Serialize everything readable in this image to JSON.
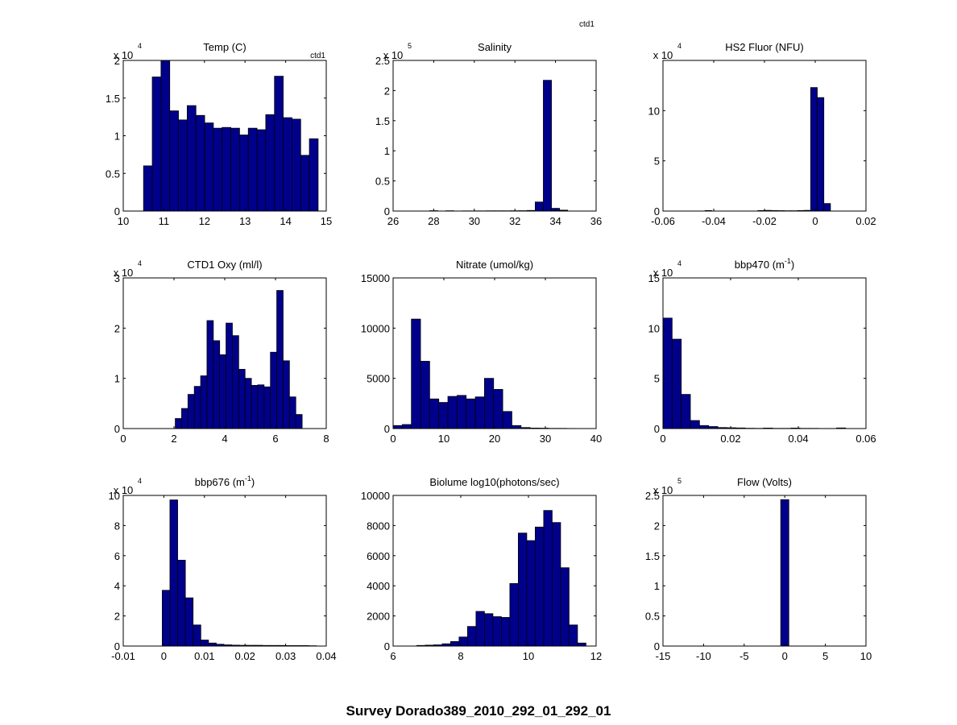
{
  "figure": {
    "suptitle": "Survey Dorado389_2010_292_01_292_01",
    "corner_label": "ctd1",
    "bar_color": "#00008B"
  },
  "chart_data": [
    {
      "type": "bar",
      "title": "Temp (C)",
      "annotation": "ctd1",
      "exponent": "4",
      "xlim": [
        10,
        15
      ],
      "ylim": [
        0,
        2
      ],
      "xticks": [
        10,
        11,
        12,
        13,
        14,
        15
      ],
      "xtick_labels": [
        "10",
        "11",
        "12",
        "13",
        "14",
        "15"
      ],
      "yticks": [
        0,
        0.5,
        1,
        1.5,
        2
      ],
      "ytick_labels": [
        "0",
        "0.5",
        "1",
        "1.5",
        "2"
      ],
      "bin_edges": [
        10.5,
        10.715,
        10.93,
        11.145,
        11.36,
        11.575,
        11.79,
        12.005,
        12.22,
        12.435,
        12.65,
        12.865,
        13.08,
        13.295,
        13.51,
        13.725,
        13.94,
        14.155,
        14.37,
        14.585,
        14.8
      ],
      "values": [
        0.6,
        1.78,
        2.0,
        1.33,
        1.21,
        1.4,
        1.27,
        1.17,
        1.1,
        1.11,
        1.1,
        1.01,
        1.1,
        1.08,
        1.28,
        1.79,
        1.24,
        1.22,
        0.74,
        0.96
      ]
    },
    {
      "type": "bar",
      "title": "Salinity",
      "exponent": "5",
      "xlim": [
        26,
        36
      ],
      "ylim": [
        0,
        2.5
      ],
      "xticks": [
        26,
        28,
        30,
        32,
        34,
        36
      ],
      "xtick_labels": [
        "26",
        "28",
        "30",
        "32",
        "34",
        "36"
      ],
      "yticks": [
        0,
        0.5,
        1,
        1.5,
        2,
        2.5
      ],
      "ytick_labels": [
        "0",
        "0.5",
        "1",
        "1.5",
        "2",
        "2.5"
      ],
      "bin_edges": [
        27.0,
        27.4,
        27.8,
        28.2,
        28.6,
        29.0,
        29.4,
        29.8,
        30.2,
        30.6,
        31.0,
        31.4,
        31.8,
        32.2,
        32.6,
        33.0,
        33.4,
        33.8,
        34.2,
        34.6,
        35.0
      ],
      "values": [
        0,
        0,
        0.006,
        0,
        0.005,
        0,
        0.003,
        0.003,
        0.003,
        0.004,
        0.004,
        0.004,
        0.005,
        0.006,
        0.01,
        0.15,
        2.17,
        0.045,
        0.015,
        0
      ]
    },
    {
      "type": "bar",
      "title": "HS2 Fluor (NFU)",
      "exponent": "4",
      "xlim": [
        -0.06,
        0.02
      ],
      "ylim": [
        0,
        15
      ],
      "xticks": [
        -0.06,
        -0.04,
        -0.02,
        0,
        0.02
      ],
      "xtick_labels": [
        "-0.06",
        "-0.04",
        "-0.02",
        "0",
        "0.02"
      ],
      "yticks": [
        0,
        5,
        10
      ],
      "ytick_labels": [
        "0",
        "5",
        "10"
      ],
      "bin_edges": [
        -0.046,
        -0.0434,
        -0.0408,
        -0.0382,
        -0.0356,
        -0.033,
        -0.0304,
        -0.0278,
        -0.0252,
        -0.0226,
        -0.02,
        -0.0174,
        -0.0148,
        -0.0122,
        -0.0096,
        -0.007,
        -0.0044,
        -0.0018,
        0.0008,
        0.0034,
        0.006
      ],
      "values": [
        0,
        0.05,
        0,
        0,
        0,
        0,
        0,
        0,
        0,
        0.05,
        0.07,
        0.05,
        0.04,
        0.03,
        0.03,
        0.05,
        0.07,
        12.3,
        11.3,
        0.75
      ]
    },
    {
      "type": "bar",
      "title": "CTD1 Oxy (ml/l)",
      "exponent": "4",
      "xlim": [
        0,
        8
      ],
      "ylim": [
        0,
        3
      ],
      "xticks": [
        0,
        2,
        4,
        6,
        8
      ],
      "xtick_labels": [
        "0",
        "2",
        "4",
        "6",
        "8"
      ],
      "yticks": [
        0,
        1,
        2,
        3
      ],
      "ytick_labels": [
        "0",
        "1",
        "2",
        "3"
      ],
      "bin_edges": [
        1.05,
        1.3,
        1.55,
        1.8,
        2.05,
        2.3,
        2.55,
        2.8,
        3.05,
        3.3,
        3.55,
        3.8,
        4.05,
        4.3,
        4.55,
        4.8,
        5.05,
        5.3,
        5.55,
        5.8,
        6.05,
        6.3,
        6.55,
        6.8,
        7.05
      ],
      "values": [
        0,
        0,
        0,
        0,
        0.2,
        0.4,
        0.68,
        0.84,
        1.05,
        2.15,
        1.75,
        1.47,
        2.1,
        1.85,
        1.18,
        1.0,
        0.86,
        0.87,
        0.83,
        1.52,
        2.75,
        1.35,
        0.63,
        0.28
      ]
    },
    {
      "type": "bar",
      "title": "Nitrate (umol/kg)",
      "xlim": [
        0,
        40
      ],
      "ylim": [
        0,
        15000
      ],
      "xticks": [
        0,
        10,
        20,
        30,
        40
      ],
      "xtick_labels": [
        "0",
        "10",
        "20",
        "30",
        "40"
      ],
      "yticks": [
        0,
        5000,
        10000,
        15000
      ],
      "ytick_labels": [
        "0",
        "5000",
        "10000",
        "15000"
      ],
      "bin_edges": [
        0,
        1.8,
        3.6,
        5.4,
        7.2,
        9.0,
        10.8,
        12.6,
        14.4,
        16.2,
        18.0,
        19.8,
        21.6,
        23.4,
        25.2,
        27.0,
        28.8,
        30.6,
        32.4,
        34.2,
        36.0
      ],
      "values": [
        300,
        400,
        10900,
        6700,
        2950,
        2600,
        3200,
        3300,
        2950,
        3150,
        5000,
        3900,
        1700,
        300,
        100,
        50,
        40,
        20,
        20,
        10
      ]
    },
    {
      "type": "bar",
      "title": "bbp470 (m",
      "title_sup": "-1",
      "title_end": ")",
      "exponent": "4",
      "xlim": [
        0,
        0.06
      ],
      "ylim": [
        0,
        15
      ],
      "xticks": [
        0,
        0.02,
        0.04,
        0.06
      ],
      "xtick_labels": [
        "0",
        "0.02",
        "0.04",
        "0.06"
      ],
      "yticks": [
        0,
        5,
        10,
        15
      ],
      "ytick_labels": [
        "0",
        "5",
        "10",
        "15"
      ],
      "bin_edges": [
        0,
        0.0027,
        0.0054,
        0.0081,
        0.0108,
        0.0135,
        0.0162,
        0.0189,
        0.0216,
        0.0243,
        0.027,
        0.0297,
        0.0324,
        0.0351,
        0.0378,
        0.0405,
        0.0432,
        0.0459,
        0.0486,
        0.0513,
        0.054
      ],
      "values": [
        11.0,
        8.9,
        3.4,
        0.8,
        0.3,
        0.2,
        0.1,
        0.08,
        0.06,
        0.03,
        0.02,
        0.05,
        0.02,
        0.02,
        0.05,
        0.02,
        0.02,
        0.01,
        0.01,
        0.06
      ]
    },
    {
      "type": "bar",
      "title": "bbp676 (m",
      "title_sup": "-1",
      "title_end": ")",
      "exponent": "4",
      "xlim": [
        -0.01,
        0.04
      ],
      "ylim": [
        0,
        10
      ],
      "xticks": [
        -0.01,
        0,
        0.01,
        0.02,
        0.03,
        0.04
      ],
      "xtick_labels": [
        "-0.01",
        "0",
        "0.01",
        "0.02",
        "0.03",
        "0.04"
      ],
      "yticks": [
        0,
        2,
        4,
        6,
        8,
        10
      ],
      "ytick_labels": [
        "0",
        "2",
        "4",
        "6",
        "8",
        "10"
      ],
      "bin_edges": [
        -0.0004,
        0.0015,
        0.0034,
        0.0053,
        0.0072,
        0.0091,
        0.011,
        0.0129,
        0.0148,
        0.0167,
        0.0186,
        0.0205,
        0.0224,
        0.0243,
        0.0262,
        0.0281,
        0.03,
        0.0319,
        0.0338,
        0.0357,
        0.0376
      ],
      "values": [
        3.7,
        9.7,
        5.7,
        3.2,
        1.4,
        0.4,
        0.2,
        0.12,
        0.08,
        0.06,
        0.05,
        0.05,
        0.05,
        0.04,
        0.04,
        0.04,
        0.03,
        0.03,
        0.03,
        0.02
      ]
    },
    {
      "type": "bar",
      "title": "Biolume log10(photons/sec)",
      "xlim": [
        6,
        12
      ],
      "ylim": [
        0,
        10000
      ],
      "xticks": [
        6,
        8,
        10,
        12
      ],
      "xtick_labels": [
        "6",
        "8",
        "10",
        "12"
      ],
      "yticks": [
        0,
        2000,
        4000,
        6000,
        8000,
        10000
      ],
      "ytick_labels": [
        "0",
        "2000",
        "4000",
        "6000",
        "8000",
        "10000"
      ],
      "bin_edges": [
        6.7,
        6.95,
        7.2,
        7.45,
        7.7,
        7.95,
        8.2,
        8.45,
        8.7,
        8.95,
        9.2,
        9.45,
        9.7,
        9.95,
        10.2,
        10.45,
        10.7,
        10.95,
        11.2,
        11.45,
        11.7
      ],
      "values": [
        40,
        60,
        80,
        150,
        300,
        600,
        1300,
        2300,
        2150,
        1950,
        1900,
        4150,
        7500,
        7000,
        7900,
        9000,
        8200,
        5200,
        1400,
        200
      ]
    },
    {
      "type": "bar",
      "title": "Flow (Volts)",
      "exponent": "5",
      "xlim": [
        -15,
        10
      ],
      "ylim": [
        0,
        2.5
      ],
      "xticks": [
        -15,
        -10,
        -5,
        0,
        5,
        10
      ],
      "xtick_labels": [
        "-15",
        "-10",
        "-5",
        "0",
        "5",
        "10"
      ],
      "yticks": [
        0,
        0.5,
        1,
        1.5,
        2,
        2.5
      ],
      "ytick_labels": [
        "0",
        "0.5",
        "1",
        "1.5",
        "2",
        "2.5"
      ],
      "bin_edges": [
        -0.5,
        0.5
      ],
      "values": [
        2.43
      ]
    }
  ]
}
